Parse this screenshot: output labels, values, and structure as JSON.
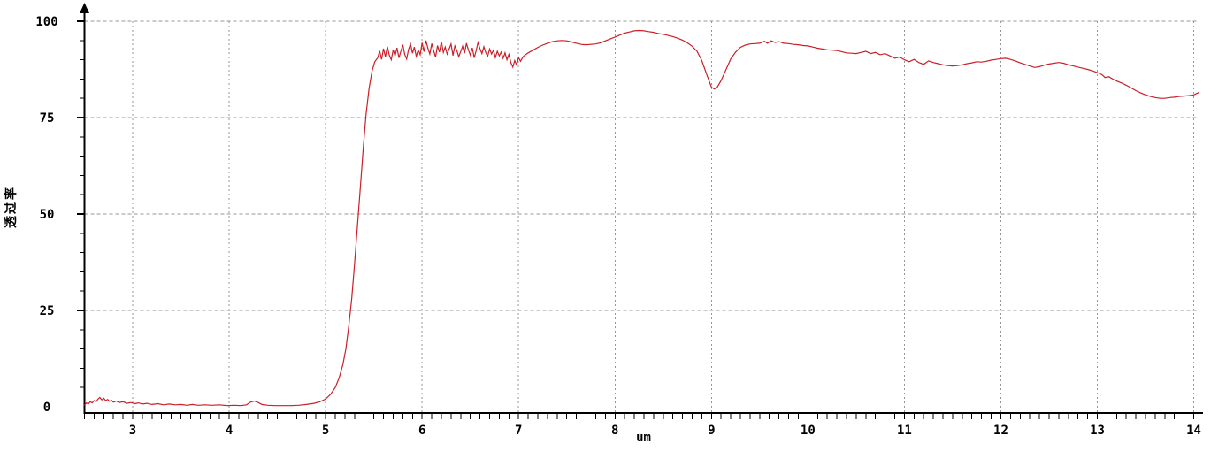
{
  "chart_data": {
    "type": "line",
    "title": "",
    "xlabel": "um",
    "ylabel": "透过率",
    "xlim": [
      2.5,
      14.05
    ],
    "ylim": [
      0,
      100
    ],
    "x_major_ticks": [
      3,
      4,
      5,
      6,
      7,
      8,
      9,
      10,
      11,
      12,
      13,
      14
    ],
    "x_minor_tick_step": 0.1,
    "y_major_ticks": [
      0,
      25,
      50,
      75,
      100
    ],
    "y_minor_tick_step": 5,
    "grid_on": true,
    "grid_color": "#979797",
    "axis_color": "#000000",
    "legend": "none",
    "series": [
      {
        "color": "#cb1f28",
        "points": [
          [
            2.5,
            0.4
          ],
          [
            2.52,
            1.0
          ],
          [
            2.54,
            0.7
          ],
          [
            2.56,
            1.3
          ],
          [
            2.58,
            1.0
          ],
          [
            2.6,
            1.6
          ],
          [
            2.62,
            1.3
          ],
          [
            2.64,
            2.0
          ],
          [
            2.66,
            2.4
          ],
          [
            2.68,
            1.8
          ],
          [
            2.7,
            2.2
          ],
          [
            2.72,
            1.6
          ],
          [
            2.74,
            1.9
          ],
          [
            2.76,
            1.4
          ],
          [
            2.78,
            1.7
          ],
          [
            2.8,
            1.2
          ],
          [
            2.83,
            1.5
          ],
          [
            2.86,
            1.1
          ],
          [
            2.9,
            1.3
          ],
          [
            2.94,
            0.9
          ],
          [
            2.98,
            1.1
          ],
          [
            3.02,
            0.8
          ],
          [
            3.06,
            1.0
          ],
          [
            3.1,
            0.7
          ],
          [
            3.15,
            0.9
          ],
          [
            3.2,
            0.6
          ],
          [
            3.26,
            0.8
          ],
          [
            3.32,
            0.5
          ],
          [
            3.38,
            0.7
          ],
          [
            3.44,
            0.5
          ],
          [
            3.5,
            0.6
          ],
          [
            3.56,
            0.4
          ],
          [
            3.62,
            0.6
          ],
          [
            3.68,
            0.4
          ],
          [
            3.75,
            0.5
          ],
          [
            3.82,
            0.4
          ],
          [
            3.9,
            0.5
          ],
          [
            3.98,
            0.3
          ],
          [
            4.05,
            0.4
          ],
          [
            4.12,
            0.3
          ],
          [
            4.18,
            0.5
          ],
          [
            4.22,
            1.2
          ],
          [
            4.26,
            1.5
          ],
          [
            4.3,
            1.1
          ],
          [
            4.34,
            0.6
          ],
          [
            4.4,
            0.4
          ],
          [
            4.48,
            0.3
          ],
          [
            4.56,
            0.3
          ],
          [
            4.64,
            0.3
          ],
          [
            4.72,
            0.4
          ],
          [
            4.8,
            0.6
          ],
          [
            4.88,
            0.9
          ],
          [
            4.94,
            1.3
          ],
          [
            5.0,
            2.0
          ],
          [
            5.05,
            3.2
          ],
          [
            5.1,
            5.0
          ],
          [
            5.14,
            7.5
          ],
          [
            5.18,
            11.0
          ],
          [
            5.21,
            15.0
          ],
          [
            5.24,
            21.0
          ],
          [
            5.27,
            28.0
          ],
          [
            5.3,
            37.0
          ],
          [
            5.33,
            47.0
          ],
          [
            5.36,
            57.0
          ],
          [
            5.39,
            67.0
          ],
          [
            5.42,
            76.0
          ],
          [
            5.45,
            82.5
          ],
          [
            5.48,
            87.0
          ],
          [
            5.51,
            89.5
          ],
          [
            5.54,
            90.5
          ],
          [
            5.56,
            92.3
          ],
          [
            5.58,
            90.1
          ],
          [
            5.6,
            92.9
          ],
          [
            5.62,
            90.8
          ],
          [
            5.64,
            93.4
          ],
          [
            5.66,
            91.2
          ],
          [
            5.68,
            90.0
          ],
          [
            5.7,
            92.6
          ],
          [
            5.72,
            91.0
          ],
          [
            5.74,
            93.1
          ],
          [
            5.76,
            90.5
          ],
          [
            5.78,
            92.2
          ],
          [
            5.8,
            93.9
          ],
          [
            5.82,
            91.4
          ],
          [
            5.84,
            90.2
          ],
          [
            5.86,
            92.7
          ],
          [
            5.88,
            94.1
          ],
          [
            5.9,
            91.7
          ],
          [
            5.92,
            93.3
          ],
          [
            5.94,
            90.9
          ],
          [
            5.96,
            92.5
          ],
          [
            5.98,
            91.3
          ],
          [
            6.0,
            94.4
          ],
          [
            6.02,
            92.1
          ],
          [
            6.04,
            95.0
          ],
          [
            6.06,
            93.0
          ],
          [
            6.08,
            91.5
          ],
          [
            6.1,
            94.2
          ],
          [
            6.12,
            92.3
          ],
          [
            6.14,
            90.7
          ],
          [
            6.16,
            93.7
          ],
          [
            6.18,
            92.0
          ],
          [
            6.2,
            94.7
          ],
          [
            6.22,
            91.9
          ],
          [
            6.24,
            93.3
          ],
          [
            6.26,
            91.5
          ],
          [
            6.28,
            92.8
          ],
          [
            6.3,
            94.1
          ],
          [
            6.32,
            91.1
          ],
          [
            6.34,
            93.6
          ],
          [
            6.36,
            92.4
          ],
          [
            6.38,
            90.8
          ],
          [
            6.4,
            92.1
          ],
          [
            6.42,
            93.5
          ],
          [
            6.44,
            91.7
          ],
          [
            6.46,
            94.3
          ],
          [
            6.48,
            92.6
          ],
          [
            6.5,
            91.2
          ],
          [
            6.52,
            93.1
          ],
          [
            6.54,
            90.5
          ],
          [
            6.56,
            92.3
          ],
          [
            6.58,
            94.5
          ],
          [
            6.6,
            92.9
          ],
          [
            6.62,
            91.6
          ],
          [
            6.64,
            93.4
          ],
          [
            6.66,
            91.9
          ],
          [
            6.68,
            90.9
          ],
          [
            6.7,
            92.8
          ],
          [
            6.72,
            91.5
          ],
          [
            6.74,
            92.5
          ],
          [
            6.76,
            90.6
          ],
          [
            6.78,
            92.2
          ],
          [
            6.8,
            91.0
          ],
          [
            6.82,
            92.0
          ],
          [
            6.84,
            90.4
          ],
          [
            6.86,
            91.8
          ],
          [
            6.88,
            90.0
          ],
          [
            6.9,
            91.4
          ],
          [
            6.92,
            89.3
          ],
          [
            6.94,
            88.1
          ],
          [
            6.96,
            89.8
          ],
          [
            6.98,
            88.7
          ],
          [
            7.0,
            90.6
          ],
          [
            7.02,
            89.6
          ],
          [
            7.05,
            90.9
          ],
          [
            7.1,
            91.8
          ],
          [
            7.15,
            92.5
          ],
          [
            7.2,
            93.2
          ],
          [
            7.25,
            93.8
          ],
          [
            7.3,
            94.3
          ],
          [
            7.35,
            94.7
          ],
          [
            7.4,
            94.9
          ],
          [
            7.45,
            95.0
          ],
          [
            7.5,
            94.9
          ],
          [
            7.55,
            94.6
          ],
          [
            7.6,
            94.3
          ],
          [
            7.65,
            94.0
          ],
          [
            7.7,
            93.9
          ],
          [
            7.75,
            94.0
          ],
          [
            7.8,
            94.1
          ],
          [
            7.85,
            94.4
          ],
          [
            7.9,
            94.9
          ],
          [
            7.95,
            95.4
          ],
          [
            8.0,
            95.9
          ],
          [
            8.05,
            96.4
          ],
          [
            8.1,
            96.9
          ],
          [
            8.15,
            97.2
          ],
          [
            8.2,
            97.5
          ],
          [
            8.25,
            97.6
          ],
          [
            8.3,
            97.5
          ],
          [
            8.35,
            97.3
          ],
          [
            8.4,
            97.1
          ],
          [
            8.45,
            96.8
          ],
          [
            8.5,
            96.6
          ],
          [
            8.55,
            96.3
          ],
          [
            8.6,
            96.0
          ],
          [
            8.65,
            95.6
          ],
          [
            8.7,
            95.1
          ],
          [
            8.75,
            94.4
          ],
          [
            8.8,
            93.5
          ],
          [
            8.85,
            92.2
          ],
          [
            8.9,
            89.8
          ],
          [
            8.95,
            86.2
          ],
          [
            9.0,
            82.9
          ],
          [
            9.03,
            82.4
          ],
          [
            9.06,
            82.9
          ],
          [
            9.1,
            84.6
          ],
          [
            9.15,
            87.4
          ],
          [
            9.2,
            90.2
          ],
          [
            9.25,
            92.0
          ],
          [
            9.3,
            93.2
          ],
          [
            9.35,
            93.8
          ],
          [
            9.4,
            94.1
          ],
          [
            9.45,
            94.2
          ],
          [
            9.5,
            94.3
          ],
          [
            9.55,
            94.8
          ],
          [
            9.58,
            94.3
          ],
          [
            9.62,
            94.9
          ],
          [
            9.66,
            94.5
          ],
          [
            9.7,
            94.7
          ],
          [
            9.75,
            94.3
          ],
          [
            9.8,
            94.2
          ],
          [
            9.85,
            94.0
          ],
          [
            9.9,
            93.9
          ],
          [
            9.95,
            93.7
          ],
          [
            10.0,
            93.6
          ],
          [
            10.05,
            93.3
          ],
          [
            10.1,
            93.0
          ],
          [
            10.15,
            92.8
          ],
          [
            10.2,
            92.6
          ],
          [
            10.25,
            92.5
          ],
          [
            10.3,
            92.4
          ],
          [
            10.35,
            92.1
          ],
          [
            10.4,
            91.8
          ],
          [
            10.45,
            91.7
          ],
          [
            10.5,
            91.6
          ],
          [
            10.55,
            91.9
          ],
          [
            10.6,
            92.2
          ],
          [
            10.65,
            91.6
          ],
          [
            10.7,
            91.9
          ],
          [
            10.75,
            91.3
          ],
          [
            10.8,
            91.6
          ],
          [
            10.85,
            91.0
          ],
          [
            10.9,
            90.4
          ],
          [
            10.95,
            90.7
          ],
          [
            11.0,
            90.0
          ],
          [
            11.05,
            89.5
          ],
          [
            11.1,
            90.1
          ],
          [
            11.15,
            89.3
          ],
          [
            11.2,
            88.8
          ],
          [
            11.25,
            89.7
          ],
          [
            11.3,
            89.3
          ],
          [
            11.35,
            89.0
          ],
          [
            11.4,
            88.7
          ],
          [
            11.45,
            88.5
          ],
          [
            11.5,
            88.4
          ],
          [
            11.55,
            88.5
          ],
          [
            11.6,
            88.7
          ],
          [
            11.65,
            89.0
          ],
          [
            11.7,
            89.2
          ],
          [
            11.75,
            89.5
          ],
          [
            11.8,
            89.4
          ],
          [
            11.85,
            89.6
          ],
          [
            11.9,
            89.9
          ],
          [
            11.95,
            90.1
          ],
          [
            12.0,
            90.3
          ],
          [
            12.05,
            90.4
          ],
          [
            12.1,
            90.1
          ],
          [
            12.15,
            89.7
          ],
          [
            12.2,
            89.2
          ],
          [
            12.25,
            88.8
          ],
          [
            12.3,
            88.4
          ],
          [
            12.35,
            88.0
          ],
          [
            12.4,
            88.2
          ],
          [
            12.45,
            88.6
          ],
          [
            12.5,
            88.9
          ],
          [
            12.55,
            89.1
          ],
          [
            12.6,
            89.3
          ],
          [
            12.65,
            89.1
          ],
          [
            12.7,
            88.7
          ],
          [
            12.75,
            88.4
          ],
          [
            12.8,
            88.1
          ],
          [
            12.85,
            87.8
          ],
          [
            12.9,
            87.5
          ],
          [
            12.95,
            87.1
          ],
          [
            13.0,
            86.7
          ],
          [
            13.05,
            86.1
          ],
          [
            13.08,
            85.4
          ],
          [
            13.12,
            85.6
          ],
          [
            13.16,
            85.0
          ],
          [
            13.2,
            84.5
          ],
          [
            13.25,
            84.0
          ],
          [
            13.3,
            83.4
          ],
          [
            13.35,
            82.7
          ],
          [
            13.4,
            82.0
          ],
          [
            13.45,
            81.4
          ],
          [
            13.5,
            80.9
          ],
          [
            13.55,
            80.5
          ],
          [
            13.6,
            80.2
          ],
          [
            13.65,
            80.0
          ],
          [
            13.7,
            80.0
          ],
          [
            13.75,
            80.2
          ],
          [
            13.8,
            80.3
          ],
          [
            13.85,
            80.5
          ],
          [
            13.9,
            80.6
          ],
          [
            13.95,
            80.7
          ],
          [
            14.0,
            80.9
          ],
          [
            14.05,
            81.5
          ]
        ]
      }
    ]
  }
}
